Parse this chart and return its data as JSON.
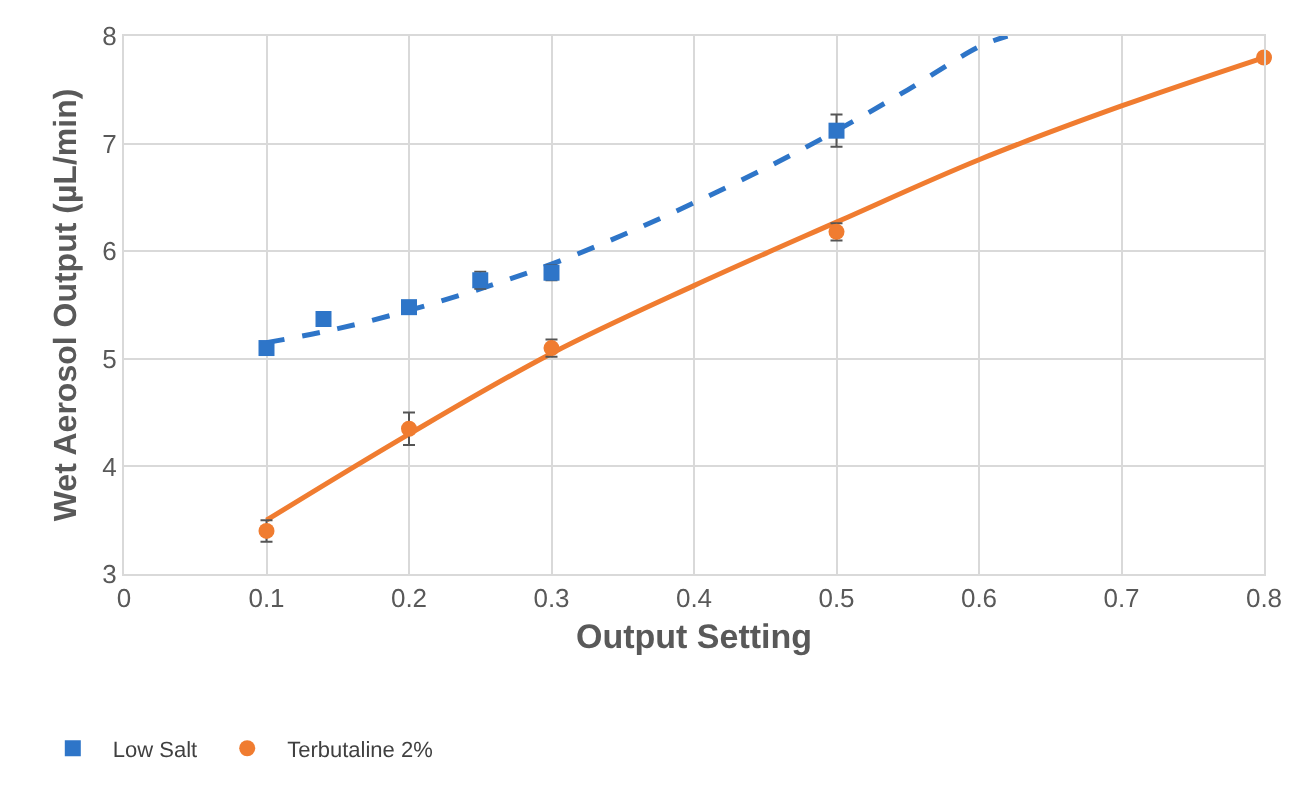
{
  "chart_data": {
    "type": "scatter",
    "xlabel": "Output Setting",
    "ylabel": "Wet Aerosol Output (µL/min)",
    "xlim": [
      0,
      0.8
    ],
    "xticks": [
      0,
      0.1,
      0.2,
      0.3,
      0.4,
      0.5,
      0.6,
      0.7,
      0.8
    ],
    "ylim": [
      3,
      8
    ],
    "yticks": [
      3,
      4,
      5,
      6,
      7,
      8
    ],
    "grid": true,
    "legend": "bottom left",
    "series": [
      {
        "type": "line",
        "color": "#2e75c8",
        "line_style": "dashed",
        "marker": "none",
        "x": [
          0.1,
          0.15,
          0.2,
          0.25,
          0.3,
          0.35,
          0.4,
          0.45,
          0.5,
          0.55,
          0.6,
          0.62
        ],
        "values": [
          5.15,
          5.28,
          5.45,
          5.65,
          5.88,
          6.15,
          6.45,
          6.77,
          7.12,
          7.5,
          7.9,
          8.0
        ]
      },
      {
        "type": "line",
        "color": "#f07c30",
        "line_style": "solid",
        "marker": "none",
        "x": [
          0.1,
          0.2,
          0.3,
          0.4,
          0.5,
          0.6,
          0.7,
          0.8
        ],
        "values": [
          3.5,
          4.3,
          5.05,
          5.68,
          6.27,
          6.85,
          7.35,
          7.8
        ]
      },
      {
        "name": "Low Salt",
        "color": "#2e75c8",
        "marker": "square",
        "x": [
          0.1,
          0.14,
          0.2,
          0.25,
          0.3,
          0.5
        ],
        "values": [
          5.1,
          5.37,
          5.48,
          5.73,
          5.8,
          7.12
        ],
        "errors": [
          null,
          null,
          null,
          0.08,
          0.07,
          0.15
        ]
      },
      {
        "name": "Terbutaline 2%",
        "color": "#f07c30",
        "marker": "circle",
        "x": [
          0.1,
          0.2,
          0.3,
          0.5,
          0.8
        ],
        "values": [
          3.4,
          4.35,
          5.1,
          6.18,
          7.8
        ],
        "errors": [
          0.1,
          0.15,
          0.08,
          0.08,
          null
        ]
      }
    ]
  }
}
